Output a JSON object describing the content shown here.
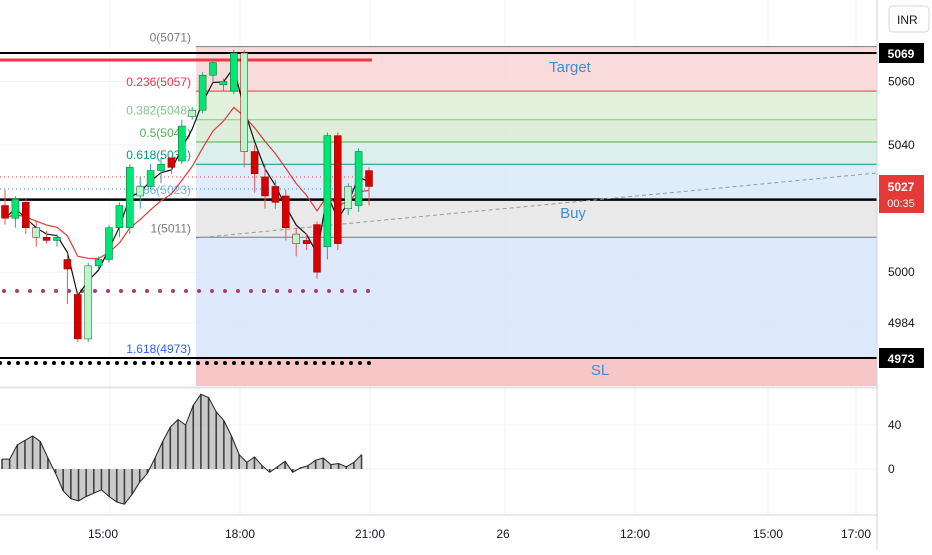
{
  "currency": "INR",
  "chart_data": {
    "type": "candlestick",
    "price_axis": {
      "ticks": [
        5060,
        5040,
        5000,
        4984
      ],
      "range": [
        4966,
        5075
      ]
    },
    "time_axis": {
      "ticks": [
        "15:00",
        "18:00",
        "21:00",
        "26",
        "12:00",
        "15:00",
        "17:00"
      ]
    },
    "current_price": {
      "value": "5027",
      "countdown": "00:35"
    },
    "price_tags": [
      {
        "label": "5069",
        "value": 5069
      },
      {
        "label": "5023",
        "value": 5023
      },
      {
        "label": "4973",
        "value": 4973
      }
    ],
    "fib_levels": [
      {
        "ratio": "0",
        "price": 5071,
        "label": "0(5071)",
        "color": "#787b86"
      },
      {
        "ratio": "0.236",
        "price": 5057,
        "label": "0.236(5057)",
        "color": "#f23645"
      },
      {
        "ratio": "0.382",
        "price": 5048,
        "label": "0.382(5048)",
        "color": "#81c784"
      },
      {
        "ratio": "0.5",
        "price": 5041,
        "label": "0.5(5041)",
        "color": "#4caf50"
      },
      {
        "ratio": "0.618",
        "price": 5034,
        "label": "0.618(5034)",
        "color": "#089981"
      },
      {
        "ratio": "0.786",
        "price": 5023,
        "label": "0.786(5023)",
        "color": "#64b5f6"
      },
      {
        "ratio": "1",
        "price": 5011,
        "label": "1(5011)",
        "color": "#787b86"
      },
      {
        "ratio": "1.618",
        "price": 4973,
        "label": "1.618(4973)",
        "color": "#2962ff"
      }
    ],
    "zones": [
      {
        "label": "Target",
        "from": 5057,
        "to": 5071,
        "color": "#f7c6c6"
      },
      {
        "label": "Buy",
        "from": 5011,
        "to": 5023,
        "color": "#e6e6e6"
      },
      {
        "label": "SL",
        "from": 4966,
        "to": 4973,
        "color": "#f7c6c6"
      }
    ],
    "candles": [
      {
        "o": 5021,
        "h": 5026,
        "l": 5015,
        "c": 5017
      },
      {
        "o": 5017,
        "h": 5024,
        "l": 5014,
        "c": 5023
      },
      {
        "o": 5022,
        "h": 5023,
        "l": 5012,
        "c": 5014
      },
      {
        "o": 5014,
        "h": 5016,
        "l": 5008,
        "c": 5011
      },
      {
        "o": 5011,
        "h": 5013,
        "l": 5009,
        "c": 5010
      },
      {
        "o": 5010,
        "h": 5012,
        "l": 5008,
        "c": 5011
      },
      {
        "o": 5004,
        "h": 5006,
        "l": 4990,
        "c": 5001
      },
      {
        "o": 4993,
        "h": 4994,
        "l": 4978,
        "c": 4979
      },
      {
        "o": 4979,
        "h": 5003,
        "l": 4978,
        "c": 5002
      },
      {
        "o": 5002,
        "h": 5005,
        "l": 5001,
        "c": 5004
      },
      {
        "o": 5004,
        "h": 5015,
        "l": 5003,
        "c": 5014
      },
      {
        "o": 5014,
        "h": 5022,
        "l": 5011,
        "c": 5021
      },
      {
        "o": 5014,
        "h": 5034,
        "l": 5012,
        "c": 5033
      },
      {
        "o": 5024,
        "h": 5030,
        "l": 5020,
        "c": 5027
      },
      {
        "o": 5027,
        "h": 5034,
        "l": 5026,
        "c": 5032
      },
      {
        "o": 5032,
        "h": 5036,
        "l": 5028,
        "c": 5034
      },
      {
        "o": 5036,
        "h": 5036,
        "l": 5031,
        "c": 5033
      },
      {
        "o": 5035,
        "h": 5048,
        "l": 5034,
        "c": 5046
      },
      {
        "o": 5049,
        "h": 5052,
        "l": 5048,
        "c": 5051
      },
      {
        "o": 5051,
        "h": 5063,
        "l": 5050,
        "c": 5062
      },
      {
        "o": 5062,
        "h": 5067,
        "l": 5060,
        "c": 5066
      },
      {
        "o": 5059,
        "h": 5061,
        "l": 5057,
        "c": 5060
      },
      {
        "o": 5057,
        "h": 5070,
        "l": 5056,
        "c": 5069
      },
      {
        "o": 5069,
        "h": 5070,
        "l": 5033,
        "c": 5038
      },
      {
        "o": 5038,
        "h": 5040,
        "l": 5025,
        "c": 5031
      },
      {
        "o": 5030,
        "h": 5034,
        "l": 5020,
        "c": 5024
      },
      {
        "o": 5027,
        "h": 5029,
        "l": 5020,
        "c": 5022
      },
      {
        "o": 5024,
        "h": 5026,
        "l": 5010,
        "c": 5014
      },
      {
        "o": 5012,
        "h": 5014,
        "l": 5005,
        "c": 5009
      },
      {
        "o": 5010,
        "h": 5012,
        "l": 5007,
        "c": 5009
      },
      {
        "o": 5015,
        "h": 5016,
        "l": 4998,
        "c": 5000
      },
      {
        "o": 5008,
        "h": 5044,
        "l": 5004,
        "c": 5043
      },
      {
        "o": 5043,
        "h": 5044,
        "l": 5007,
        "c": 5009
      },
      {
        "o": 5020,
        "h": 5028,
        "l": 5018,
        "c": 5027
      },
      {
        "o": 5021,
        "h": 5039,
        "l": 5019,
        "c": 5038
      },
      {
        "o": 5032,
        "h": 5033,
        "l": 5021,
        "c": 5027
      }
    ],
    "oscillator": {
      "ticks": [
        40,
        0
      ],
      "values": [
        9,
        9,
        22,
        26,
        30,
        25,
        10,
        -4,
        -20,
        -27,
        -29,
        -25,
        -22,
        -19,
        -25,
        -30,
        -32,
        -23,
        -12,
        -4,
        10,
        25,
        38,
        45,
        40,
        58,
        68,
        65,
        52,
        44,
        30,
        13,
        6,
        11,
        3,
        -3,
        2,
        7,
        -3,
        1,
        3,
        8,
        10,
        4,
        5,
        2,
        6,
        13
      ]
    }
  }
}
